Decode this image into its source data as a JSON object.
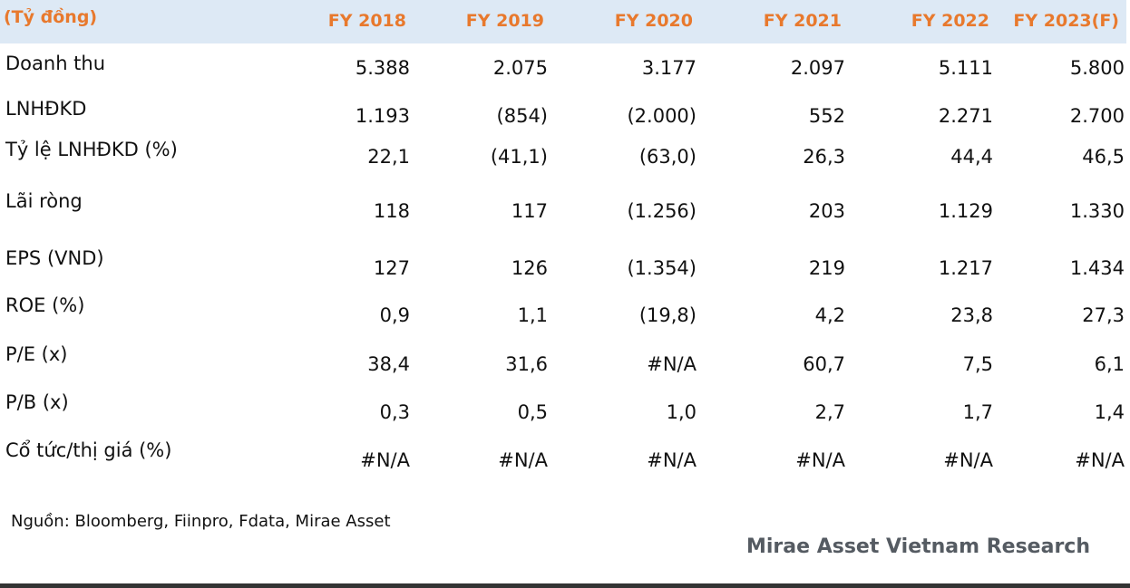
{
  "header": {
    "unit_label": "(Tỷ đồng)",
    "columns": [
      "FY 2018",
      "FY 2019",
      "FY 2020",
      "FY 2021",
      "FY 2022",
      "FY 2023(F)"
    ]
  },
  "rows": [
    {
      "label": "Doanh thu",
      "values": [
        "5.388",
        "2.075",
        "3.177",
        "2.097",
        "5.111",
        "5.800"
      ]
    },
    {
      "label": "LNHĐKD",
      "values": [
        "1.193",
        "(854)",
        "(2.000)",
        "552",
        "2.271",
        "2.700"
      ]
    },
    {
      "label": "Tỷ lệ LNHĐKD (%)",
      "values": [
        "22,1",
        "(41,1)",
        "(63,0)",
        "26,3",
        "44,4",
        "46,5"
      ]
    },
    {
      "label": "Lãi ròng",
      "values": [
        "118",
        "117",
        "(1.256)",
        "203",
        "1.129",
        "1.330"
      ]
    },
    {
      "label": "EPS (VND)",
      "values": [
        "127",
        "126",
        "(1.354)",
        "219",
        "1.217",
        "1.434"
      ]
    },
    {
      "label": "ROE (%)",
      "values": [
        "0,9",
        "1,1",
        "(19,8)",
        "4,2",
        "23,8",
        "27,3"
      ]
    },
    {
      "label": "P/E (x)",
      "values": [
        "38,4",
        "31,6",
        "#N/A",
        "60,7",
        "7,5",
        "6,1"
      ]
    },
    {
      "label": "P/B (x)",
      "values": [
        "0,3",
        "0,5",
        "1,0",
        "2,7",
        "1,7",
        "1,4"
      ]
    },
    {
      "label": "Cổ tức/thị giá (%)",
      "values": [
        "#N/A",
        "#N/A",
        "#N/A",
        "#N/A",
        "#N/A",
        "#N/A"
      ]
    }
  ],
  "footer": {
    "source": "Nguồn: Bloomberg, Fiinpro, Fdata, Mirae Asset",
    "brand": "Mirae Asset Vietnam Research"
  },
  "colors": {
    "header_bg": "#dde9f5",
    "header_text": "#e8792d"
  }
}
